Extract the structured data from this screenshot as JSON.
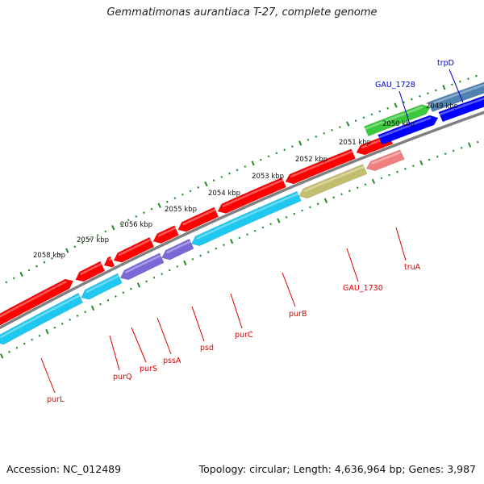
{
  "title": "Gemmatimonas aurantiaca T-27, complete genome",
  "footer": {
    "accession": "Accession: NC_012489",
    "summary": "Topology: circular; Length: 4,636,964 bp; Genes: 3,987"
  },
  "colors": {
    "backbone": "#808080",
    "forward_cds": "#ff0000",
    "reverse_cds": "#1ec8f0",
    "purple_cds": "#7b68d8",
    "olive_cds": "#c3bd6e",
    "green_cds": "#3cc83c",
    "steel_cds": "#4f82b0",
    "blue_cds": "#0000ff",
    "pink_cds": "#f08080",
    "ruler": "#228b22",
    "label_red": "#dd0000",
    "label_blue": "#0000cc"
  },
  "kbp_ticks": [
    "2049 kbp",
    "2050 kbp",
    "2051 kbp",
    "2052 kbp",
    "2053 kbp",
    "2054 kbp",
    "2055 kbp",
    "2056 kbp",
    "2057 kbp",
    "2058 kbp"
  ],
  "gene_labels": [
    {
      "name": "trpD",
      "color": "blue"
    },
    {
      "name": "GAU_1728",
      "color": "blue"
    },
    {
      "name": "truA",
      "color": "red"
    },
    {
      "name": "GAU_1730",
      "color": "red"
    },
    {
      "name": "purB",
      "color": "red"
    },
    {
      "name": "purC",
      "color": "red"
    },
    {
      "name": "psd",
      "color": "red"
    },
    {
      "name": "pssA",
      "color": "red"
    },
    {
      "name": "purS",
      "color": "red"
    },
    {
      "name": "purQ",
      "color": "red"
    },
    {
      "name": "purL",
      "color": "red"
    }
  ]
}
